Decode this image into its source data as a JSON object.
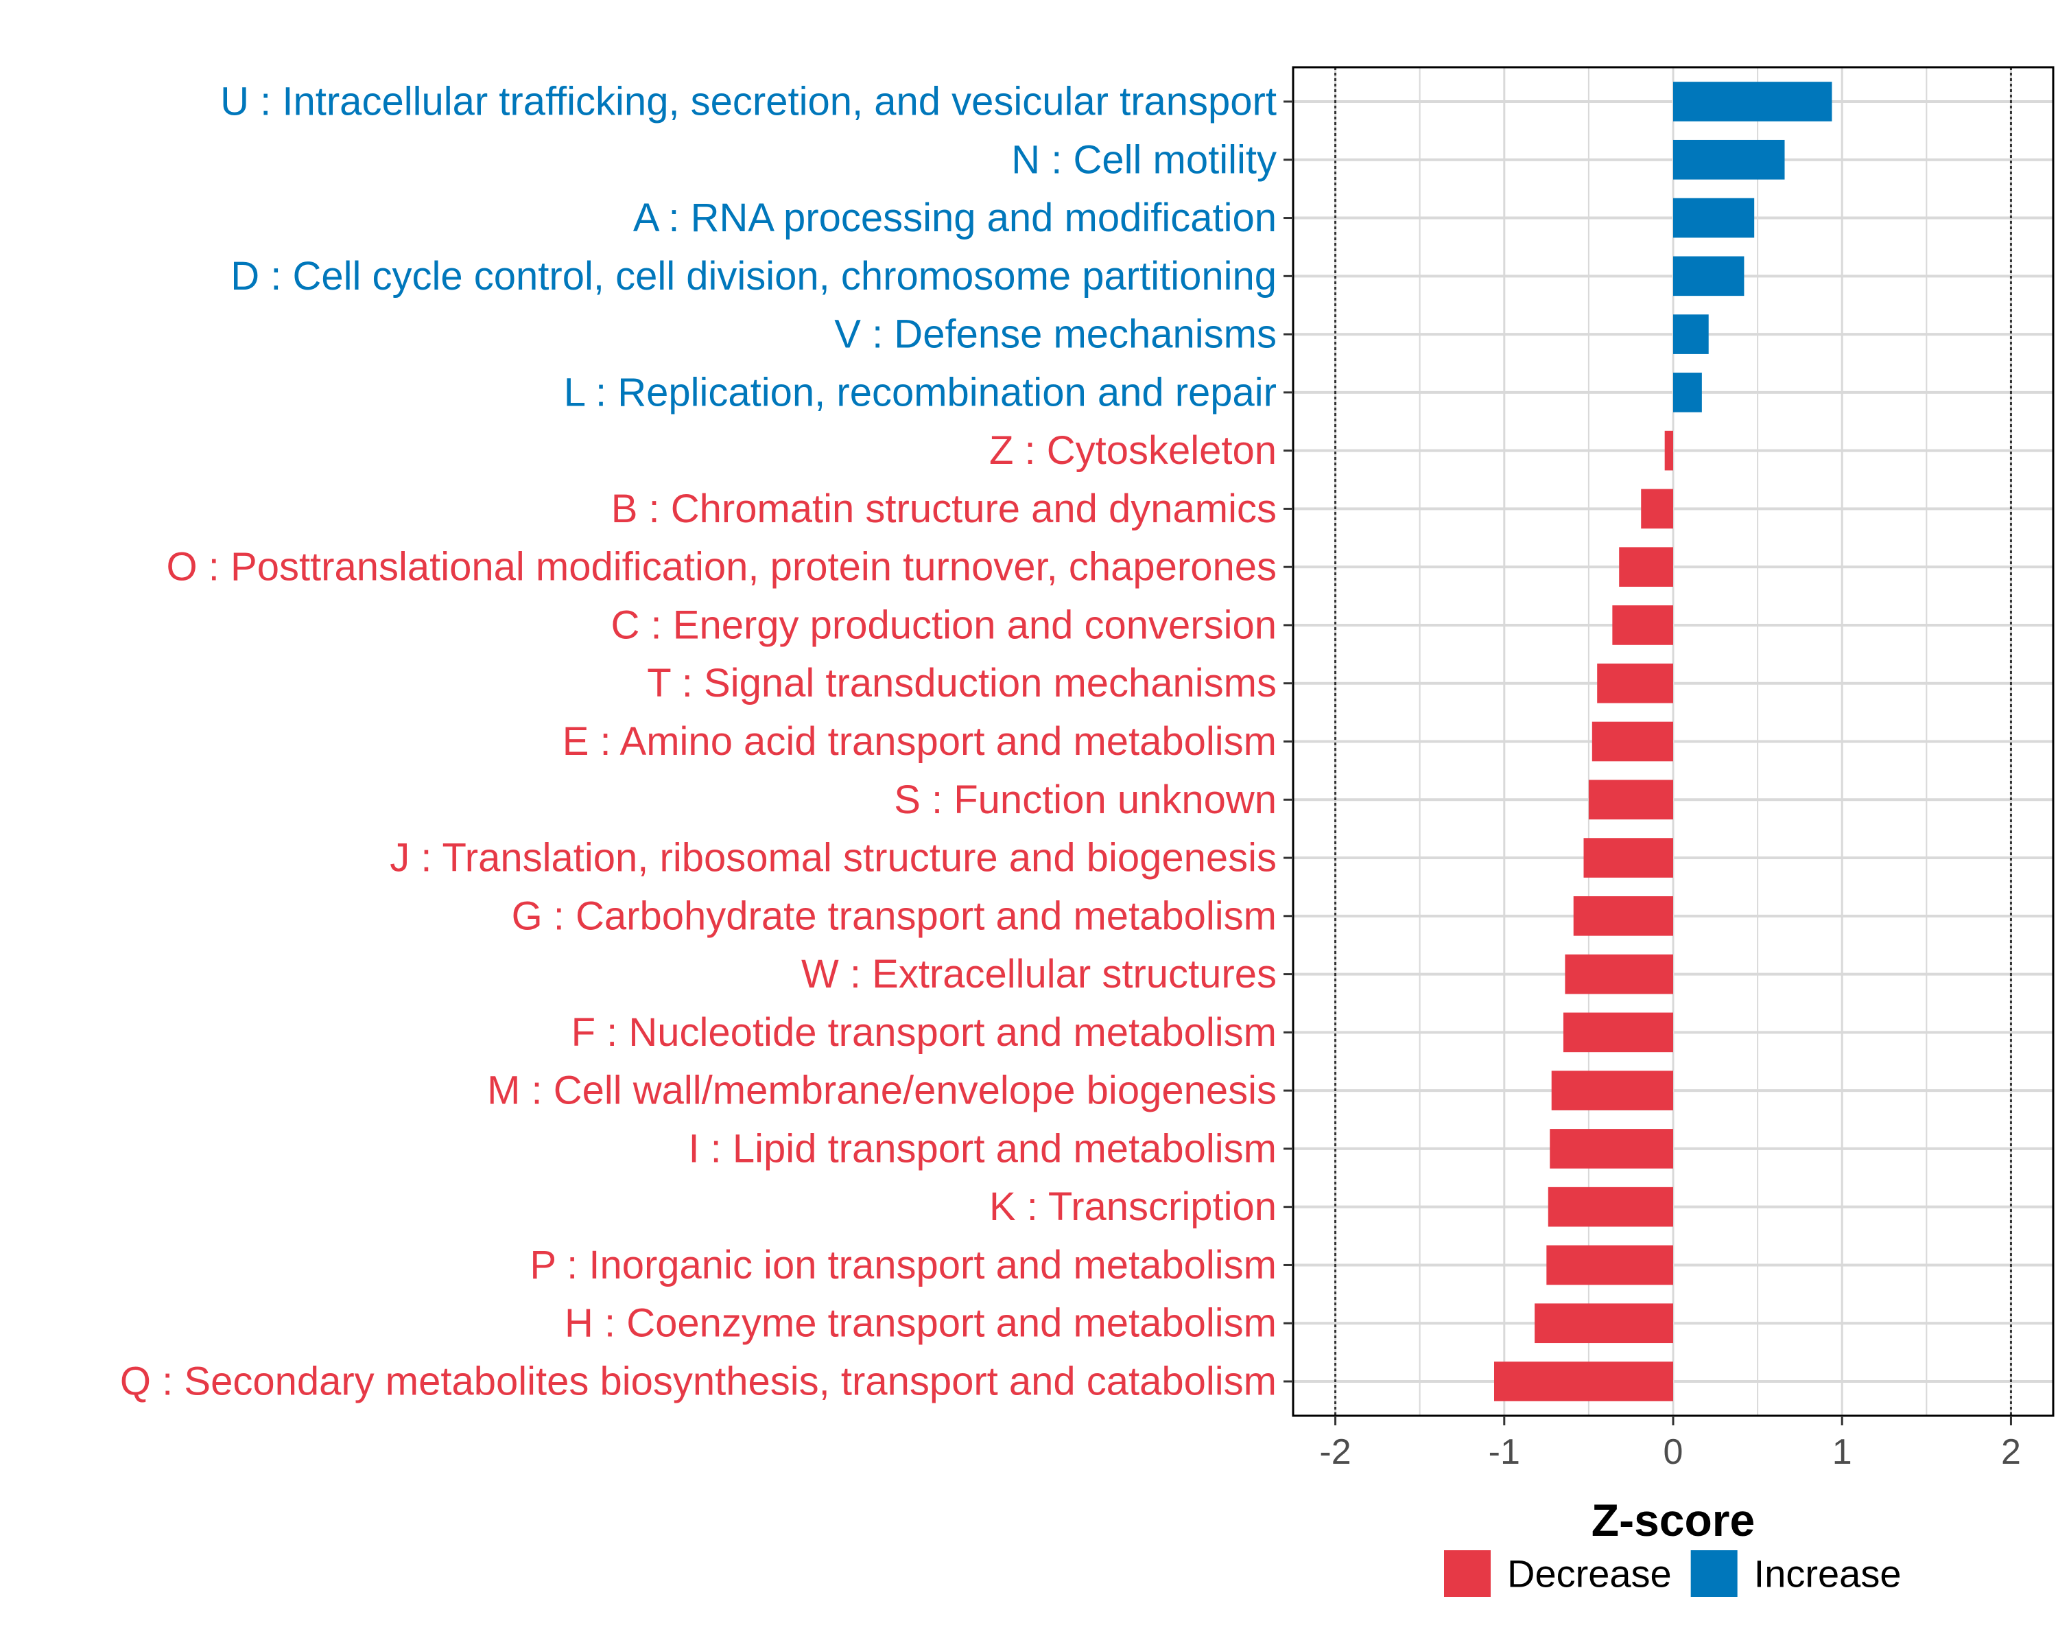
{
  "chart_data": {
    "type": "bar",
    "orientation": "horizontal",
    "xlabel": "Z-score",
    "ylabel": "",
    "xlim": [
      -2.25,
      2.25
    ],
    "xticks": [
      -2,
      -1,
      0,
      1,
      2
    ],
    "xtick_labels": [
      "-2",
      "-1",
      "0",
      "1",
      "2"
    ],
    "reference_lines": [
      -2,
      2
    ],
    "grid": true,
    "colors": {
      "Decrease": "#e63946",
      "Increase": "#0077bb"
    },
    "legend": {
      "position": "bottom",
      "items": [
        {
          "label": "Decrease",
          "color": "#e63946"
        },
        {
          "label": "Increase",
          "color": "#0077bb"
        }
      ]
    },
    "categories": [
      "U : Intracellular trafficking, secretion, and vesicular transport",
      "N : Cell motility",
      "A : RNA processing and modification",
      "D : Cell cycle control, cell division, chromosome partitioning",
      "V : Defense mechanisms",
      "L : Replication, recombination and repair",
      "Z : Cytoskeleton",
      "B : Chromatin structure and dynamics",
      "O : Posttranslational modification, protein turnover, chaperones",
      "C : Energy production and conversion",
      "T : Signal transduction mechanisms",
      "E : Amino acid transport and metabolism",
      "S : Function unknown",
      "J : Translation, ribosomal structure and biogenesis",
      "G : Carbohydrate transport and metabolism",
      "W : Extracellular structures",
      "F : Nucleotide transport and metabolism",
      "M : Cell wall/membrane/envelope biogenesis",
      "I : Lipid transport and metabolism",
      "K : Transcription",
      "P : Inorganic ion transport and metabolism",
      "H : Coenzyme transport and metabolism",
      "Q : Secondary metabolites biosynthesis, transport and catabolism"
    ],
    "values": [
      0.94,
      0.66,
      0.48,
      0.42,
      0.21,
      0.17,
      -0.05,
      -0.19,
      -0.32,
      -0.36,
      -0.45,
      -0.48,
      -0.5,
      -0.53,
      -0.59,
      -0.64,
      -0.65,
      -0.72,
      -0.73,
      -0.74,
      -0.75,
      -0.82,
      -1.06
    ],
    "groups": [
      "Increase",
      "Increase",
      "Increase",
      "Increase",
      "Increase",
      "Increase",
      "Decrease",
      "Decrease",
      "Decrease",
      "Decrease",
      "Decrease",
      "Decrease",
      "Decrease",
      "Decrease",
      "Decrease",
      "Decrease",
      "Decrease",
      "Decrease",
      "Decrease",
      "Decrease",
      "Decrease",
      "Decrease",
      "Decrease"
    ]
  }
}
